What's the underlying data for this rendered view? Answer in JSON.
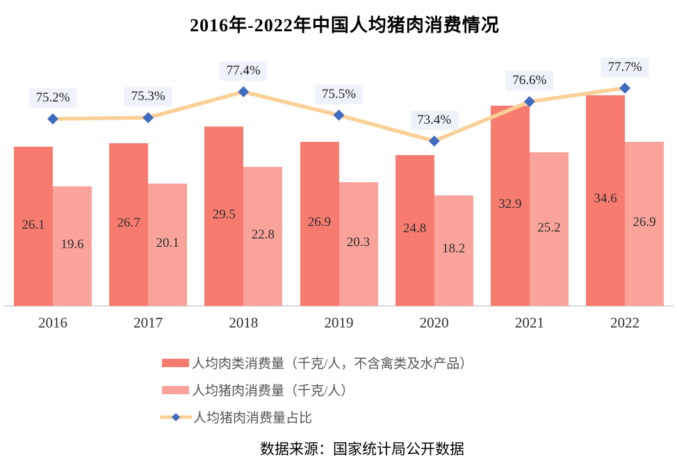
{
  "chart": {
    "title": "2016年-2022年中国人均猪肉消费情况",
    "source": "数据来源：国家统计局公开数据"
  },
  "chart_data": {
    "type": "bar",
    "subtype": "grouped-bar-with-line-combo",
    "title": "2016年-2022年中国人均猪肉消费情况",
    "categories": [
      "2016",
      "2017",
      "2018",
      "2019",
      "2020",
      "2021",
      "2022"
    ],
    "series": [
      {
        "name": "人均肉类消费量（千克/人，不含禽类及水产品）",
        "type": "bar",
        "values": [
          26.1,
          26.7,
          29.5,
          26.9,
          24.8,
          32.9,
          34.6
        ],
        "color": "#f87b70"
      },
      {
        "name": "人均猪肉消费量（千克/人）",
        "type": "bar",
        "values": [
          19.6,
          20.1,
          22.8,
          20.3,
          18.2,
          25.2,
          26.9
        ],
        "color": "#f9a39b"
      },
      {
        "name": "人均猪肉消费量占比",
        "type": "line",
        "values": [
          75.2,
          75.3,
          77.4,
          75.5,
          73.4,
          76.6,
          77.7
        ],
        "labels": [
          "75.2%",
          "75.3%",
          "77.4%",
          "75.5%",
          "73.4%",
          "76.6%",
          "77.7%"
        ],
        "line_color": "#fbd096",
        "marker_color": "#3e6cc0",
        "label_bg": "#eff2fa"
      }
    ],
    "bar_ylim": [
      0,
      50
    ],
    "line_ylim": [
      70,
      80
    ],
    "grid": false,
    "legend_position": "bottom-left",
    "source": "数据来源：国家统计局公开数据"
  },
  "colors": {
    "axis_line": "#d9d9d9",
    "bar_value_text": "#2f2f2f",
    "tick_text": "#303030",
    "legend_text": "#555555",
    "title_text": "#000000"
  }
}
